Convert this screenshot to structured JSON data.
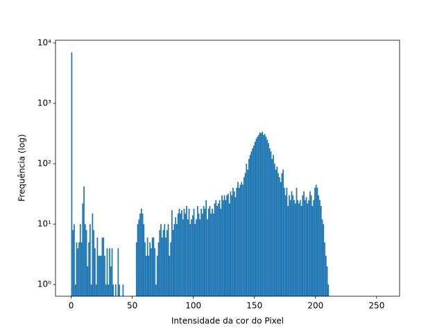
{
  "chart_data": {
    "type": "histogram",
    "xlabel": "Intensidade da cor do Pixel",
    "ylabel": "Frequência (log)",
    "color": "#1f77b4",
    "log_y": true,
    "xlim": [
      -12.8,
      268.8
    ],
    "ylim": [
      0.64,
      11100
    ],
    "xticks": [
      0,
      50,
      100,
      150,
      200,
      250
    ],
    "yticks": [
      {
        "value": 1,
        "label": "10⁰"
      },
      {
        "value": 10,
        "label": "10¹"
      },
      {
        "value": 100,
        "label": "10²"
      },
      {
        "value": 1000,
        "label": "10³"
      },
      {
        "value": 10000,
        "label": "10⁴"
      }
    ],
    "bins": [
      0,
      1,
      2,
      3,
      4,
      5,
      6,
      7,
      8,
      9,
      10,
      11,
      12,
      13,
      14,
      15,
      16,
      17,
      18,
      19,
      20,
      21,
      22,
      23,
      24,
      25,
      26,
      27,
      28,
      29,
      30,
      31,
      32,
      33,
      34,
      35,
      36,
      37,
      38,
      39,
      40,
      41,
      42,
      43,
      44,
      45,
      46,
      47,
      48,
      49,
      50,
      51,
      52,
      53,
      54,
      55,
      56,
      57,
      58,
      59,
      60,
      61,
      62,
      63,
      64,
      65,
      66,
      67,
      68,
      69,
      70,
      71,
      72,
      73,
      74,
      75,
      76,
      77,
      78,
      79,
      80,
      81,
      82,
      83,
      84,
      85,
      86,
      87,
      88,
      89,
      90,
      91,
      92,
      93,
      94,
      95,
      96,
      97,
      98,
      99,
      100,
      101,
      102,
      103,
      104,
      105,
      106,
      107,
      108,
      109,
      110,
      111,
      112,
      113,
      114,
      115,
      116,
      117,
      118,
      119,
      120,
      121,
      122,
      123,
      124,
      125,
      126,
      127,
      128,
      129,
      130,
      131,
      132,
      133,
      134,
      135,
      136,
      137,
      138,
      139,
      140,
      141,
      142,
      143,
      144,
      145,
      146,
      147,
      148,
      149,
      150,
      151,
      152,
      153,
      154,
      155,
      156,
      157,
      158,
      159,
      160,
      161,
      162,
      163,
      164,
      165,
      166,
      167,
      168,
      169,
      170,
      171,
      172,
      173,
      174,
      175,
      176,
      177,
      178,
      179,
      180,
      181,
      182,
      183,
      184,
      185,
      186,
      187,
      188,
      189,
      190,
      191,
      192,
      193,
      194,
      195,
      196,
      197,
      198,
      199,
      200,
      201,
      202,
      203,
      204,
      205,
      206,
      207,
      208,
      209,
      210,
      211,
      212,
      213,
      214,
      215,
      216,
      217,
      218,
      219,
      220,
      221,
      222,
      223,
      224,
      225,
      226,
      227,
      228,
      229,
      230,
      231,
      232,
      233,
      234,
      235,
      236,
      237,
      238,
      239,
      240,
      241,
      242,
      243,
      244,
      245,
      246,
      247,
      248,
      249,
      250,
      251,
      252,
      253,
      254,
      255,
      256
    ],
    "counts": [
      7000,
      8,
      10,
      1,
      5,
      4,
      5,
      10,
      5,
      22,
      42,
      10,
      8,
      2,
      5,
      10,
      1,
      15,
      8,
      4,
      1,
      6,
      3,
      3,
      3,
      6,
      6,
      3,
      1,
      4,
      1,
      4,
      2,
      4,
      1,
      0,
      1,
      0,
      4,
      1,
      0,
      0,
      1,
      0,
      0,
      0,
      0,
      0,
      0,
      0,
      0,
      0,
      0,
      5,
      10,
      12,
      15,
      18,
      15,
      10,
      5,
      3,
      6,
      3,
      5,
      4,
      6,
      6,
      4,
      1,
      3,
      5,
      8,
      10,
      6,
      8,
      10,
      6,
      8,
      10,
      3,
      5,
      17,
      8,
      10,
      13,
      10,
      15,
      18,
      15,
      17,
      12,
      18,
      15,
      20,
      12,
      18,
      10,
      12,
      14,
      18,
      10,
      12,
      20,
      15,
      12,
      18,
      15,
      20,
      18,
      25,
      12,
      18,
      20,
      15,
      18,
      15,
      22,
      25,
      20,
      22,
      25,
      18,
      30,
      25,
      30,
      25,
      30,
      32,
      22,
      35,
      30,
      40,
      35,
      28,
      40,
      50,
      40,
      45,
      50,
      45,
      60,
      70,
      100,
      80,
      120,
      140,
      160,
      180,
      200,
      230,
      260,
      280,
      300,
      330,
      320,
      340,
      300,
      310,
      280,
      250,
      220,
      180,
      160,
      120,
      140,
      100,
      80,
      90,
      70,
      60,
      50,
      70,
      80,
      40,
      30,
      40,
      20,
      30,
      25,
      35,
      30,
      25,
      22,
      40,
      25,
      22,
      25,
      20,
      30,
      35,
      25,
      28,
      22,
      25,
      35,
      30,
      20,
      25,
      40,
      45,
      40,
      30,
      25,
      20,
      12,
      10,
      5,
      3,
      2,
      1,
      0,
      0,
      0,
      0,
      0,
      0,
      0,
      0,
      0,
      0,
      0,
      0,
      0,
      0,
      0,
      0,
      0,
      0,
      0,
      0,
      0,
      0,
      0,
      0,
      0,
      0,
      0,
      0,
      0,
      0,
      0,
      0,
      0,
      0,
      0,
      0,
      0,
      0,
      0,
      0,
      0,
      0,
      0,
      0,
      0
    ]
  }
}
